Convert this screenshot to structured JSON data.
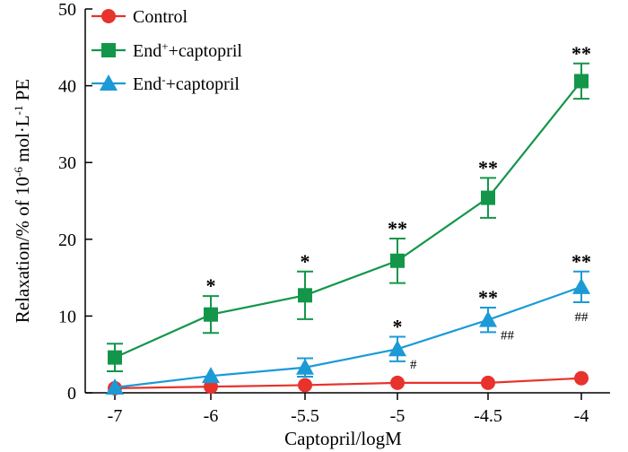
{
  "chart_data": {
    "type": "line",
    "title": "",
    "xlabel": "Captopril/logM",
    "ylabel": "Relaxation/% of 10",
    "ylabel_exponent": "-6",
    "ylabel_unit_prefix": " mol·L",
    "ylabel_unit_exponent": "-1",
    "ylabel_suffix": " PE",
    "ylim": [
      0,
      50
    ],
    "y_ticks": [
      0,
      10,
      20,
      30,
      40,
      50
    ],
    "categories": [
      "-7",
      "-6",
      "-5.5",
      "-5",
      "-4.5",
      "-4"
    ],
    "legend_position": "top-left",
    "series": [
      {
        "name": "Control",
        "label_base": "Control",
        "label_sup": "",
        "label_rest": "",
        "marker": "circle",
        "color": "#e8322c",
        "values": [
          0.6,
          0.8,
          1.0,
          1.3,
          1.3,
          1.9
        ],
        "errors": [
          0,
          0,
          0,
          0,
          0,
          0
        ]
      },
      {
        "name": "End+ +captopril",
        "label_base": "End",
        "label_sup": "+",
        "label_rest": "+captopril",
        "marker": "square",
        "color": "#13964a",
        "values": [
          4.6,
          10.2,
          12.7,
          17.2,
          25.4,
          40.6
        ],
        "errors": [
          1.8,
          2.4,
          3.1,
          2.9,
          2.6,
          2.3
        ]
      },
      {
        "name": "End- +captopril",
        "label_base": "End",
        "label_sup": "-",
        "label_rest": "+captopril",
        "marker": "triangle",
        "color": "#1b9ad6",
        "values": [
          0.7,
          2.2,
          3.3,
          5.7,
          9.5,
          13.8
        ],
        "errors": [
          0,
          0,
          1.2,
          1.6,
          1.6,
          2.0
        ]
      }
    ],
    "annotations": [
      {
        "text": "*",
        "series": 1,
        "index": 1
      },
      {
        "text": "*",
        "series": 1,
        "index": 2
      },
      {
        "text": "**",
        "series": 1,
        "index": 3
      },
      {
        "text": "**",
        "series": 1,
        "index": 4
      },
      {
        "text": "**",
        "series": 1,
        "index": 5
      },
      {
        "text": "*",
        "series": 2,
        "index": 3
      },
      {
        "text": "**",
        "series": 2,
        "index": 4
      },
      {
        "text": "**",
        "series": 2,
        "index": 5
      }
    ],
    "hash_annotations": [
      {
        "text": "#",
        "series": 2,
        "index": 3
      },
      {
        "text": "##",
        "series": 2,
        "index": 4
      },
      {
        "text": "##",
        "series": 2,
        "index": 5
      }
    ]
  }
}
